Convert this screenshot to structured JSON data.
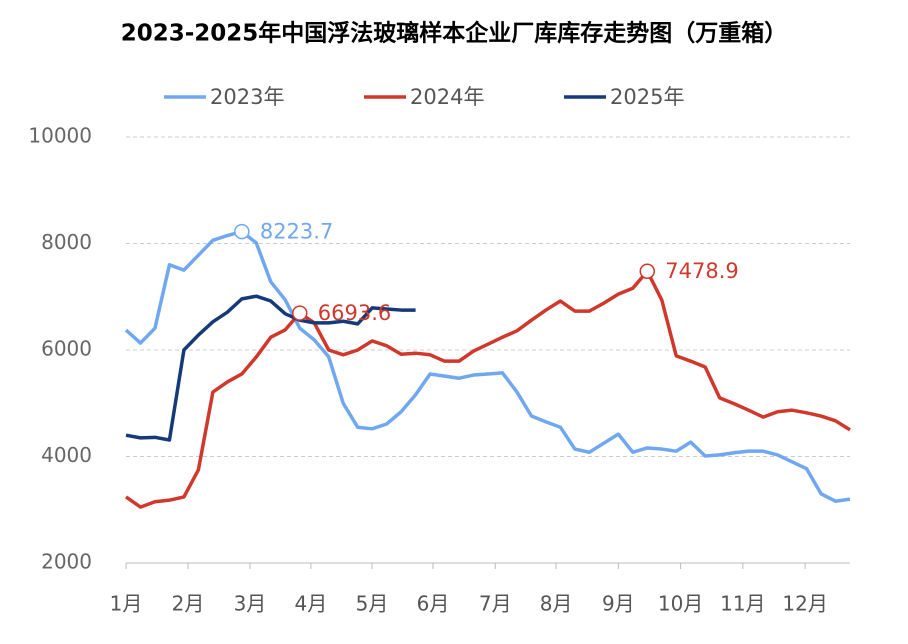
{
  "chart_data": {
    "type": "line",
    "title": "2023-2025年中国浮法玻璃样本企业厂库库存走势图（万重箱）",
    "x": [
      1,
      2,
      3,
      4,
      5,
      6,
      7,
      8,
      9,
      10,
      11,
      12,
      13,
      14,
      15,
      16,
      17,
      18,
      19,
      20,
      21,
      22,
      23,
      24,
      25,
      26,
      27,
      28,
      29,
      30,
      31,
      32,
      33,
      34,
      35,
      36,
      37,
      38,
      39,
      40,
      41,
      42,
      43,
      44,
      45,
      46,
      47,
      48,
      49,
      50,
      51
    ],
    "xlim": [
      1,
      51
    ],
    "xticks": [
      {
        "value": 1,
        "label": "1月"
      },
      {
        "value": 5.28,
        "label": "2月"
      },
      {
        "value": 9.56,
        "label": "3月"
      },
      {
        "value": 13.77,
        "label": "4月"
      },
      {
        "value": 17.99,
        "label": "5月"
      },
      {
        "value": 22.2,
        "label": "6月"
      },
      {
        "value": 26.5,
        "label": "7月"
      },
      {
        "value": 30.7,
        "label": "8月"
      },
      {
        "value": 35,
        "label": "9月"
      },
      {
        "value": 39.3,
        "label": "10月"
      },
      {
        "value": 43.6,
        "label": "11月"
      },
      {
        "value": 47.9,
        "label": "12月"
      }
    ],
    "ylim": [
      2000,
      10000
    ],
    "yticks": [
      2000,
      4000,
      6000,
      8000,
      10000
    ],
    "grid": true,
    "legend": "top",
    "series": [
      {
        "name": "2023年",
        "color": "#6fa8f0",
        "values": [
          6375,
          6130,
          6410,
          7600,
          7500,
          7780,
          8060,
          8150,
          8223.7,
          8010,
          7280,
          6940,
          6410,
          6190,
          5870,
          5000,
          4550,
          4520,
          4610,
          4840,
          5160,
          5550,
          5510,
          5470,
          5530,
          5550,
          5570,
          5210,
          4760,
          4650,
          4550,
          4140,
          4080,
          4250,
          4420,
          4080,
          4160,
          4140,
          4100,
          4270,
          4010,
          4030,
          4070,
          4100,
          4100,
          4030,
          3900,
          3770,
          3300,
          3160,
          3200
        ]
      },
      {
        "name": "2024年",
        "color": "#d0382b",
        "values": [
          3240,
          3050,
          3150,
          3180,
          3240,
          3750,
          5210,
          5400,
          5550,
          5870,
          6240,
          6380,
          6693.6,
          6510,
          6000,
          5910,
          6000,
          6170,
          6080,
          5920,
          5940,
          5910,
          5790,
          5790,
          5980,
          6110,
          6240,
          6360,
          6560,
          6750,
          6920,
          6730,
          6730,
          6880,
          7050,
          7160,
          7478.9,
          6940,
          5890,
          5790,
          5680,
          5100,
          4990,
          4870,
          4740,
          4840,
          4870,
          4820,
          4760,
          4670,
          4500
        ]
      },
      {
        "name": "2025年",
        "color": "#143a7a",
        "values": [
          4400,
          4350,
          4360,
          4310,
          6000,
          6280,
          6530,
          6710,
          6960,
          7010,
          6920,
          6680,
          6560,
          6510,
          6510,
          6540,
          6490,
          6790,
          6770,
          6750,
          6750,
          null,
          null,
          null,
          null,
          null,
          null,
          null,
          null,
          null,
          null,
          null,
          null,
          null,
          null,
          null,
          null,
          null,
          null,
          null,
          null,
          null,
          null,
          null,
          null,
          null,
          null,
          null,
          null,
          null,
          null
        ]
      }
    ],
    "annotations": [
      {
        "x": 9,
        "y": 8223.7,
        "color": "#6fa8f0"
      },
      {
        "x": 13,
        "y": 6693.6,
        "color": "#d0382b"
      },
      {
        "x": 37,
        "y": 7478.9,
        "color": "#d0382b"
      }
    ]
  }
}
